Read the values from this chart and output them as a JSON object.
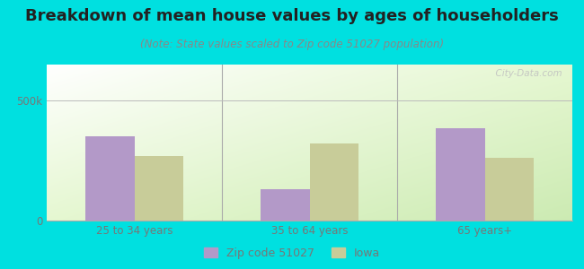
{
  "title": "Breakdown of mean house values by ages of householders",
  "subtitle": "(Note: State values scaled to Zip code 51027 population)",
  "categories": [
    "25 to 34 years",
    "35 to 64 years",
    "65 years+"
  ],
  "series": [
    {
      "label": "Zip code 51027",
      "values": [
        350000,
        130000,
        385000
      ],
      "color": "#b399c8"
    },
    {
      "label": "Iowa",
      "values": [
        270000,
        320000,
        260000
      ],
      "color": "#c8cc99"
    }
  ],
  "ylim": [
    0,
    650000
  ],
  "yticks": [
    0,
    500000
  ],
  "ytick_labels": [
    "0",
    "500k"
  ],
  "bar_width": 0.28,
  "outer_background": "#00e0e0",
  "grid_color": "#bbbbbb",
  "title_fontsize": 13,
  "subtitle_fontsize": 8.5,
  "tick_fontsize": 8.5,
  "legend_fontsize": 9,
  "watermark": "  City-Data.com"
}
